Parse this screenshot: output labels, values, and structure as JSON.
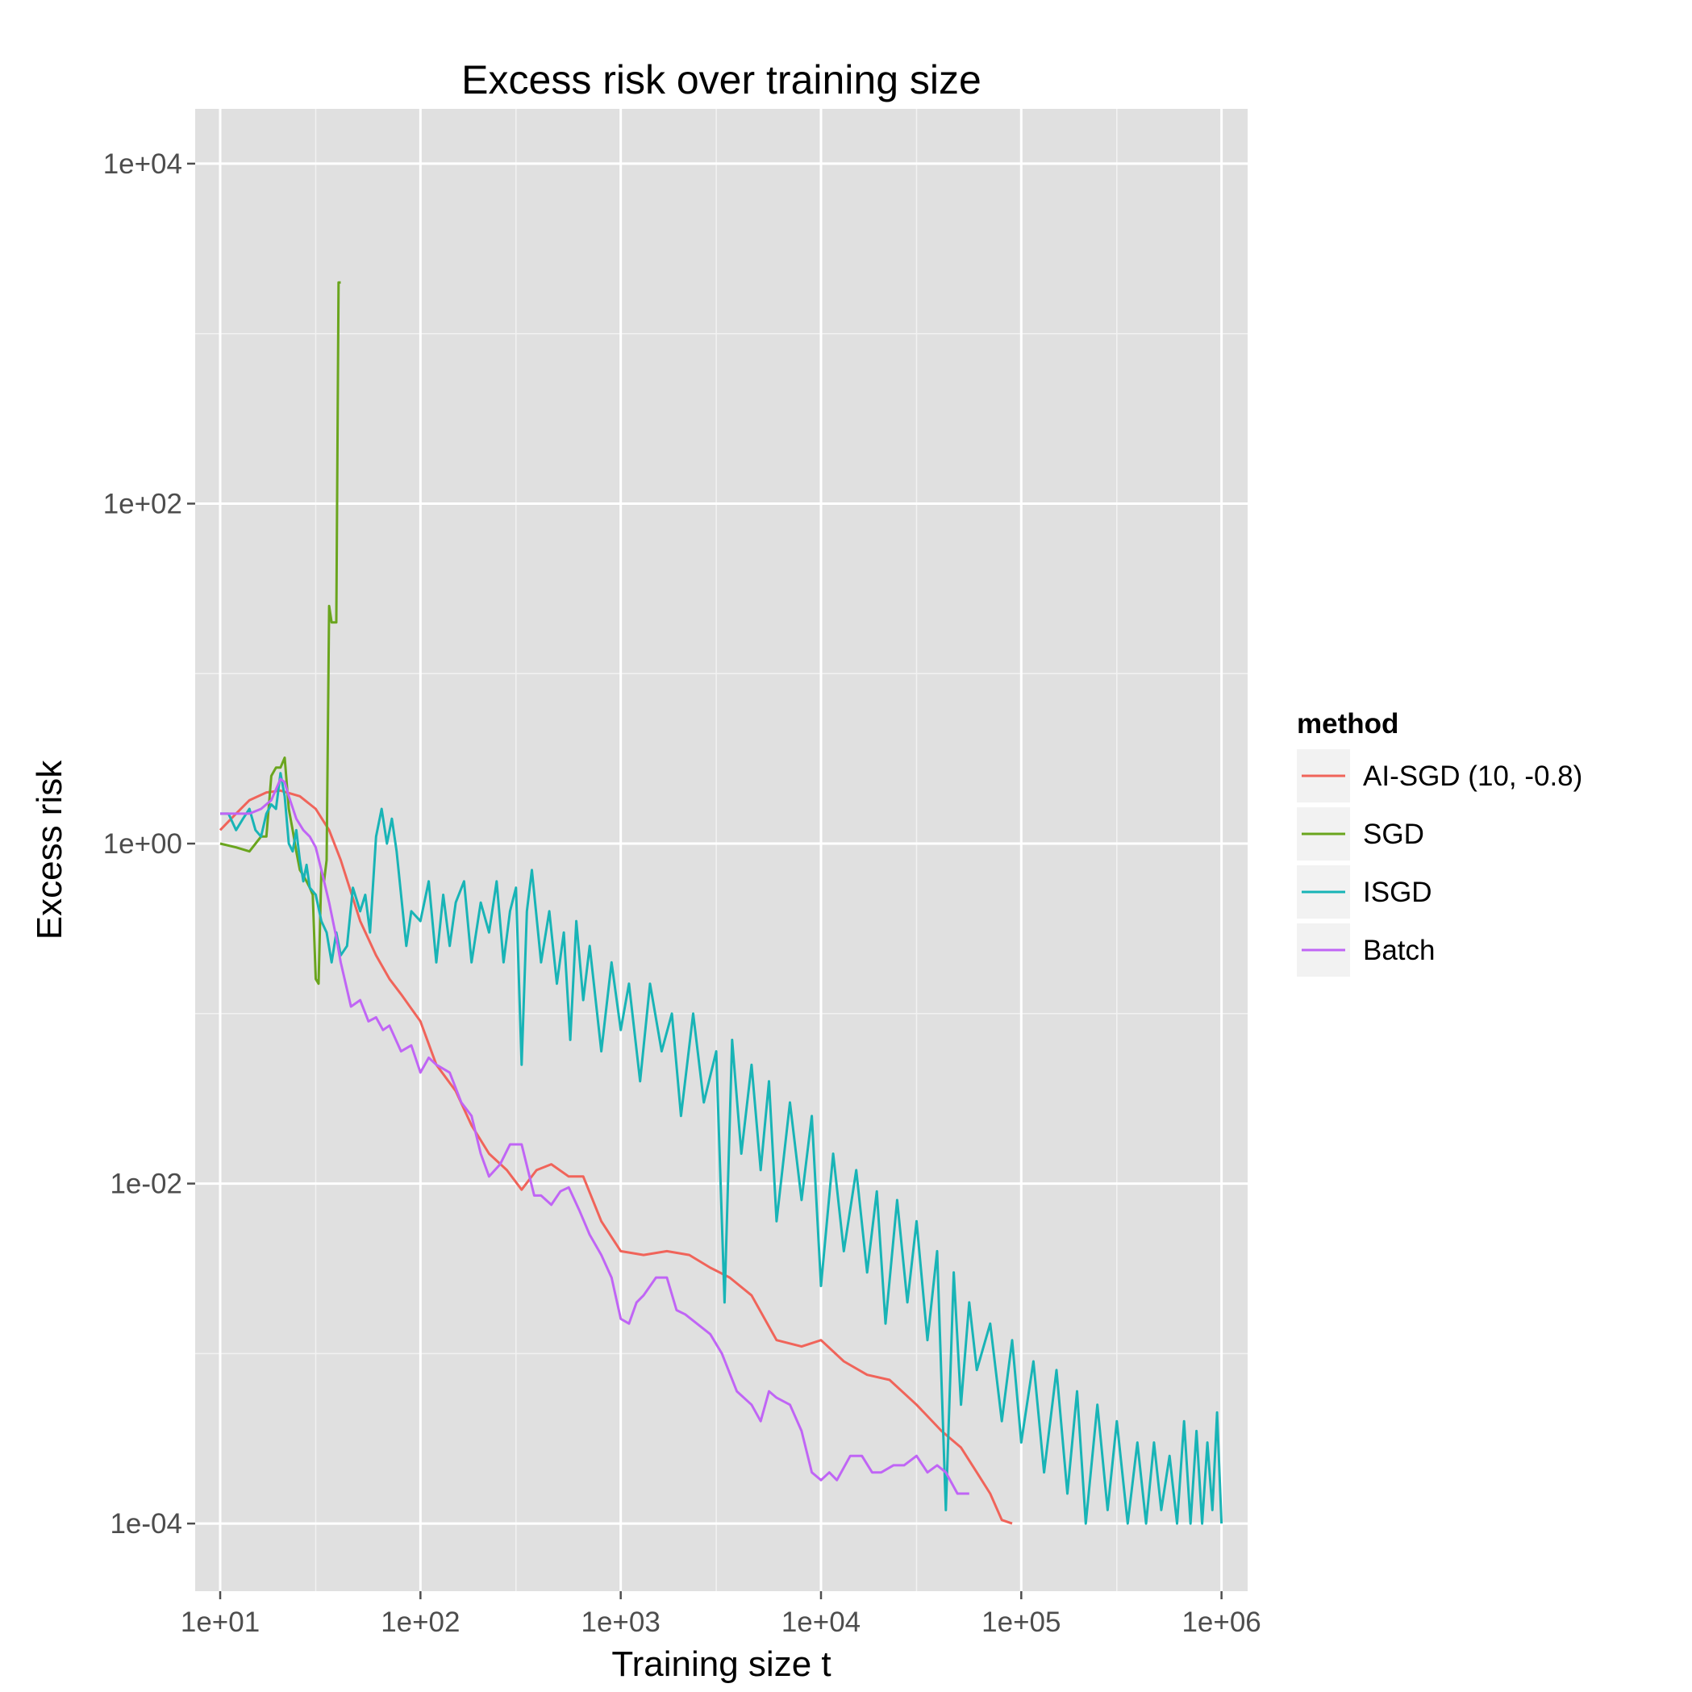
{
  "chart_data": {
    "type": "line",
    "title": "Excess risk over training size",
    "xlabel": "Training size t",
    "ylabel": "Excess risk",
    "x_scale": "log10",
    "y_scale": "log10",
    "xlim": [
      7.5,
      1350000
    ],
    "ylim": [
      4e-05,
      21000
    ],
    "x_ticks": [
      {
        "value": 10,
        "label": "1e+01"
      },
      {
        "value": 100,
        "label": "1e+02"
      },
      {
        "value": 1000,
        "label": "1e+03"
      },
      {
        "value": 10000,
        "label": "1e+04"
      },
      {
        "value": 100000,
        "label": "1e+05"
      },
      {
        "value": 1000000,
        "label": "1e+06"
      }
    ],
    "y_ticks": [
      {
        "value": 0.0001,
        "label": "1e-04"
      },
      {
        "value": 0.01,
        "label": "1e-02"
      },
      {
        "value": 1,
        "label": "1e+00"
      },
      {
        "value": 100,
        "label": "1e+02"
      },
      {
        "value": 10000,
        "label": "1e+04"
      }
    ],
    "grid": true,
    "background": "#e0e0e0",
    "legend": {
      "title": "method",
      "position": "right"
    },
    "series": [
      {
        "name": "AI-SGD (10, -0.8)",
        "color": "#f0645a",
        "x": [
          10,
          12,
          14,
          17,
          20,
          25,
          30,
          35,
          40,
          50,
          60,
          70,
          80,
          100,
          120,
          150,
          180,
          220,
          270,
          320,
          380,
          450,
          550,
          650,
          800,
          1000,
          1300,
          1700,
          2200,
          2800,
          3500,
          4500,
          6000,
          8000,
          10000,
          13000,
          17000,
          22000,
          30000,
          40000,
          50000,
          60000,
          70000,
          80000,
          90000
        ],
        "y": [
          1.2,
          1.5,
          1.8,
          2.0,
          2.05,
          1.9,
          1.6,
          1.2,
          0.8,
          0.35,
          0.22,
          0.16,
          0.13,
          0.09,
          0.05,
          0.035,
          0.022,
          0.015,
          0.012,
          0.0092,
          0.012,
          0.013,
          0.011,
          0.011,
          0.006,
          0.004,
          0.0038,
          0.004,
          0.0038,
          0.0032,
          0.0028,
          0.0022,
          0.0012,
          0.0011,
          0.0012,
          0.0009,
          0.00075,
          0.0007,
          0.0005,
          0.00035,
          0.00028,
          0.0002,
          0.00015,
          0.000105,
          0.0001
        ]
      },
      {
        "name": "SGD",
        "color": "#6aa51e",
        "x": [
          10,
          12,
          14,
          16,
          17,
          18,
          19,
          20,
          21,
          22,
          23,
          24,
          25,
          26,
          27,
          28,
          29,
          30,
          31,
          32,
          33,
          34,
          35,
          36,
          37,
          38,
          39,
          40
        ],
        "y": [
          1.0,
          0.95,
          0.9,
          1.1,
          1.1,
          2.5,
          2.8,
          2.8,
          3.2,
          1.6,
          1.2,
          0.9,
          0.7,
          0.65,
          0.6,
          0.55,
          0.5,
          0.16,
          0.15,
          0.7,
          0.6,
          0.8,
          25,
          20,
          20,
          20,
          2000,
          2000
        ]
      },
      {
        "name": "ISGD",
        "color": "#18b4b6",
        "x": [
          10,
          11,
          12,
          13,
          14,
          15,
          16,
          17,
          18,
          19,
          20,
          21,
          22,
          23,
          24,
          25,
          26,
          27,
          28,
          30,
          32,
          34,
          36,
          38,
          40,
          43,
          46,
          50,
          53,
          56,
          60,
          64,
          68,
          72,
          76,
          80,
          85,
          90,
          100,
          110,
          120,
          130,
          140,
          150,
          165,
          180,
          200,
          220,
          240,
          260,
          280,
          300,
          320,
          340,
          360,
          400,
          440,
          480,
          520,
          560,
          600,
          650,
          700,
          800,
          900,
          1000,
          1100,
          1250,
          1400,
          1600,
          1800,
          2000,
          2300,
          2600,
          3000,
          3300,
          3600,
          4000,
          4500,
          5000,
          5500,
          6000,
          7000,
          8000,
          9000,
          10000,
          11500,
          13000,
          15000,
          17000,
          19000,
          21000,
          24000,
          27000,
          30000,
          34000,
          38000,
          42000,
          46000,
          50000,
          55000,
          60000,
          70000,
          80000,
          90000,
          100000,
          115000,
          130000,
          150000,
          170000,
          190000,
          210000,
          240000,
          270000,
          300000,
          340000,
          380000,
          420000,
          460000,
          500000,
          550000,
          600000,
          650000,
          700000,
          750000,
          800000,
          850000,
          900000,
          950000,
          1000000
        ],
        "y": [
          1.5,
          1.5,
          1.2,
          1.4,
          1.6,
          1.2,
          1.1,
          1.5,
          1.7,
          1.6,
          2.6,
          1.9,
          1.0,
          0.9,
          1.2,
          0.8,
          0.6,
          0.75,
          0.55,
          0.5,
          0.35,
          0.3,
          0.2,
          0.3,
          0.22,
          0.25,
          0.55,
          0.4,
          0.5,
          0.3,
          1.1,
          1.6,
          1.0,
          1.4,
          0.9,
          0.5,
          0.25,
          0.4,
          0.35,
          0.6,
          0.2,
          0.5,
          0.25,
          0.45,
          0.6,
          0.2,
          0.45,
          0.3,
          0.6,
          0.2,
          0.4,
          0.55,
          0.05,
          0.4,
          0.7,
          0.2,
          0.4,
          0.15,
          0.3,
          0.07,
          0.35,
          0.12,
          0.25,
          0.06,
          0.2,
          0.08,
          0.15,
          0.04,
          0.15,
          0.06,
          0.1,
          0.025,
          0.1,
          0.03,
          0.06,
          0.002,
          0.07,
          0.015,
          0.05,
          0.012,
          0.04,
          0.006,
          0.03,
          0.008,
          0.025,
          0.0025,
          0.015,
          0.004,
          0.012,
          0.003,
          0.009,
          0.0015,
          0.008,
          0.002,
          0.006,
          0.0012,
          0.004,
          0.00012,
          0.003,
          0.0005,
          0.002,
          0.0008,
          0.0015,
          0.0004,
          0.0012,
          0.0003,
          0.0009,
          0.0002,
          0.0008,
          0.00015,
          0.0006,
          0.0001,
          0.0005,
          0.00012,
          0.0004,
          0.0001,
          0.0003,
          0.0001,
          0.0003,
          0.00012,
          0.00025,
          0.0001,
          0.0004,
          0.0001,
          0.00035,
          0.0001,
          0.0003,
          0.00012,
          0.00045,
          0.0001
        ]
      },
      {
        "name": "Batch",
        "color": "#c065f5",
        "x": [
          10,
          12,
          14,
          16,
          18,
          20,
          21,
          22,
          24,
          26,
          28,
          30,
          32,
          35,
          38,
          40,
          45,
          50,
          55,
          60,
          65,
          70,
          80,
          90,
          100,
          110,
          120,
          140,
          160,
          180,
          200,
          220,
          250,
          280,
          320,
          370,
          400,
          450,
          500,
          550,
          620,
          700,
          800,
          900,
          1000,
          1100,
          1200,
          1300,
          1500,
          1700,
          1900,
          2100,
          2400,
          2800,
          3200,
          3800,
          4500,
          5000,
          5500,
          6000,
          7000,
          8000,
          9000,
          10000,
          11000,
          12000,
          14000,
          16000,
          18000,
          20000,
          23000,
          26000,
          30000,
          34000,
          38000,
          42000,
          48000,
          55000
        ],
        "y": [
          1.5,
          1.5,
          1.5,
          1.6,
          1.8,
          2.4,
          2.3,
          1.9,
          1.4,
          1.2,
          1.1,
          0.95,
          0.7,
          0.45,
          0.28,
          0.2,
          0.11,
          0.12,
          0.09,
          0.095,
          0.08,
          0.085,
          0.06,
          0.065,
          0.045,
          0.055,
          0.05,
          0.045,
          0.03,
          0.025,
          0.015,
          0.011,
          0.013,
          0.017,
          0.017,
          0.0085,
          0.0085,
          0.0075,
          0.009,
          0.0095,
          0.007,
          0.005,
          0.0038,
          0.0028,
          0.0016,
          0.0015,
          0.002,
          0.0022,
          0.0028,
          0.0028,
          0.0018,
          0.0017,
          0.0015,
          0.0013,
          0.001,
          0.0006,
          0.0005,
          0.0004,
          0.0006,
          0.00055,
          0.0005,
          0.00035,
          0.0002,
          0.00018,
          0.0002,
          0.00018,
          0.00025,
          0.00025,
          0.0002,
          0.0002,
          0.00022,
          0.00022,
          0.00025,
          0.0002,
          0.00022,
          0.0002,
          0.00015,
          0.00015
        ]
      }
    ]
  }
}
